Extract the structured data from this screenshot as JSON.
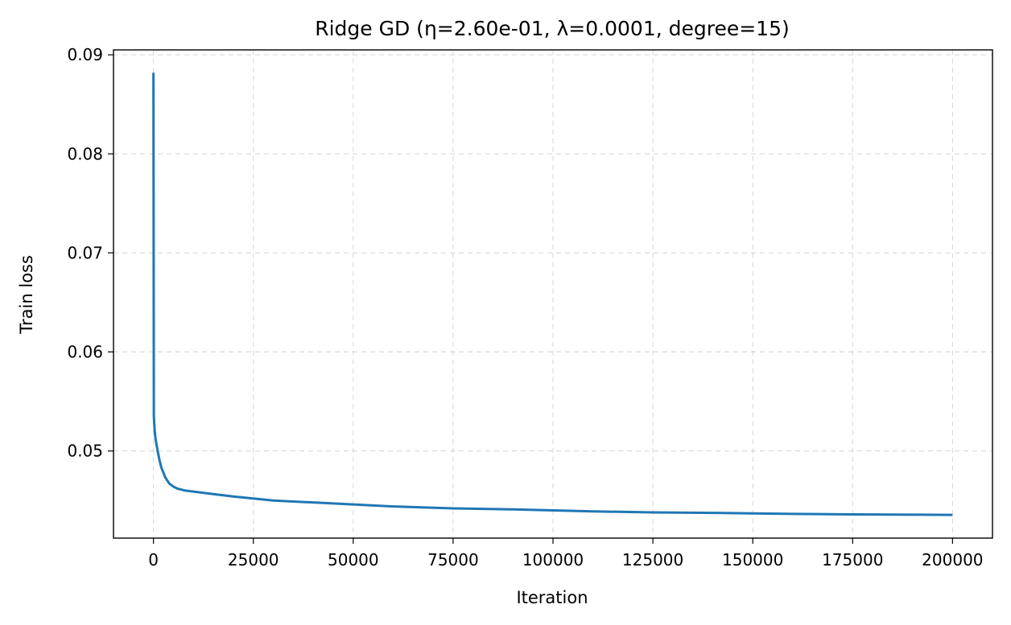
{
  "chart_data": {
    "type": "line",
    "title": "Ridge GD (η=2.60e-01, λ=0.0001, degree=15)",
    "xlabel": "Iteration",
    "ylabel": "Train loss",
    "xlim": [
      -10000,
      210000
    ],
    "ylim": [
      0.0412,
      0.0905
    ],
    "xticks": [
      0,
      25000,
      50000,
      75000,
      100000,
      125000,
      150000,
      175000,
      200000
    ],
    "xtick_labels": [
      "0",
      "25000",
      "50000",
      "75000",
      "100000",
      "125000",
      "150000",
      "175000",
      "200000"
    ],
    "yticks": [
      0.05,
      0.06,
      0.07,
      0.08,
      0.09
    ],
    "ytick_labels": [
      "0.05",
      "0.06",
      "0.07",
      "0.08",
      "0.09"
    ],
    "grid": true,
    "colors": {
      "line": "#1f77b4"
    },
    "series": [
      {
        "x": [
          0,
          100,
          300,
          500,
          1000,
          1500,
          2000,
          3000,
          4000,
          5000,
          6000,
          8000,
          10000,
          15000,
          20000,
          25000,
          30000,
          40000,
          50000,
          60000,
          75000,
          90000,
          100000,
          110000,
          125000,
          140000,
          150000,
          160000,
          175000,
          190000,
          200000
        ],
        "values": [
          0.0882,
          0.0535,
          0.0521,
          0.0513,
          0.0501,
          0.0491,
          0.0483,
          0.0473,
          0.0467,
          0.0464,
          0.0462,
          0.046,
          0.0459,
          0.04565,
          0.0454,
          0.0452,
          0.045,
          0.0448,
          0.0446,
          0.0444,
          0.0442,
          0.0441,
          0.044,
          0.0439,
          0.0438,
          0.04375,
          0.0437,
          0.04365,
          0.0436,
          0.04357,
          0.04355
        ]
      }
    ]
  }
}
